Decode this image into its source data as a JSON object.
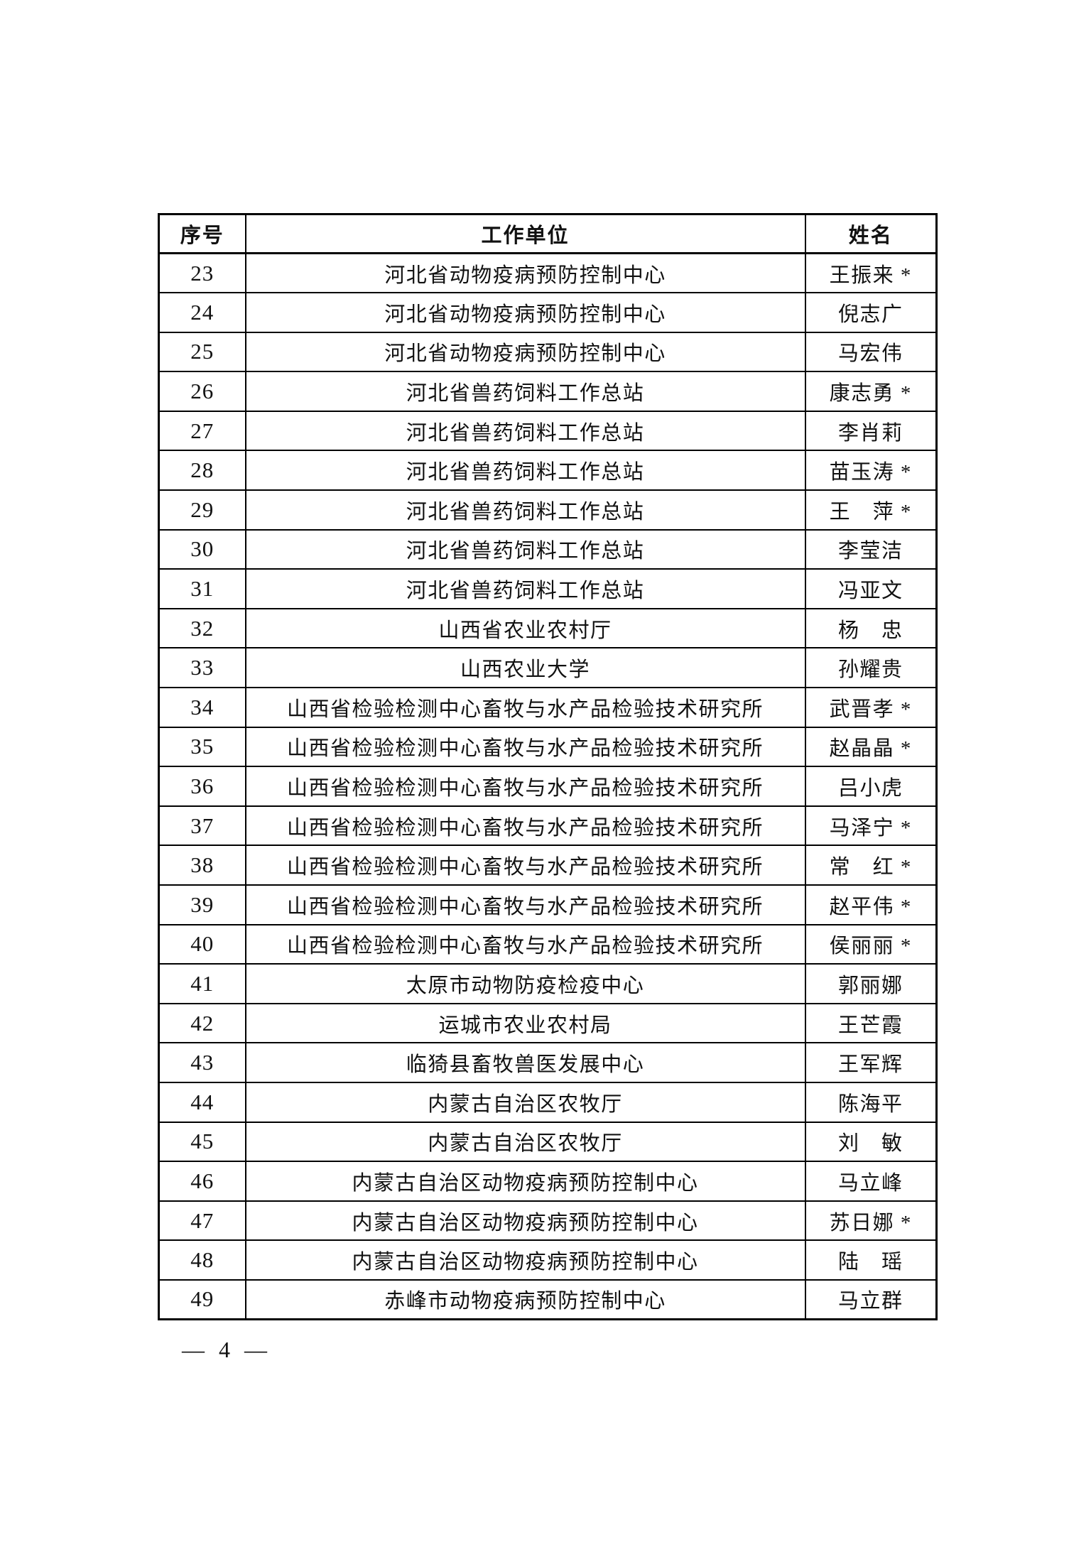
{
  "page": {
    "footer_page_number": "— 4 —"
  },
  "table": {
    "headers": {
      "serial": "序号",
      "unit": "工作单位",
      "name": "姓名"
    },
    "rows": [
      {
        "no": "23",
        "unit": "河北省动物疫病预防控制中心",
        "name": "王振来 *"
      },
      {
        "no": "24",
        "unit": "河北省动物疫病预防控制中心",
        "name": "倪志广"
      },
      {
        "no": "25",
        "unit": "河北省动物疫病预防控制中心",
        "name": "马宏伟"
      },
      {
        "no": "26",
        "unit": "河北省兽药饲料工作总站",
        "name": "康志勇 *"
      },
      {
        "no": "27",
        "unit": "河北省兽药饲料工作总站",
        "name": "李肖莉"
      },
      {
        "no": "28",
        "unit": "河北省兽药饲料工作总站",
        "name": "苗玉涛 *"
      },
      {
        "no": "29",
        "unit": "河北省兽药饲料工作总站",
        "name": "王　萍 *"
      },
      {
        "no": "30",
        "unit": "河北省兽药饲料工作总站",
        "name": "李莹洁"
      },
      {
        "no": "31",
        "unit": "河北省兽药饲料工作总站",
        "name": "冯亚文"
      },
      {
        "no": "32",
        "unit": "山西省农业农村厅",
        "name": "杨　忠"
      },
      {
        "no": "33",
        "unit": "山西农业大学",
        "name": "孙耀贵"
      },
      {
        "no": "34",
        "unit": "山西省检验检测中心畜牧与水产品检验技术研究所",
        "name": "武晋孝 *"
      },
      {
        "no": "35",
        "unit": "山西省检验检测中心畜牧与水产品检验技术研究所",
        "name": "赵晶晶 *"
      },
      {
        "no": "36",
        "unit": "山西省检验检测中心畜牧与水产品检验技术研究所",
        "name": "吕小虎"
      },
      {
        "no": "37",
        "unit": "山西省检验检测中心畜牧与水产品检验技术研究所",
        "name": "马泽宁 *"
      },
      {
        "no": "38",
        "unit": "山西省检验检测中心畜牧与水产品检验技术研究所",
        "name": "常　红 *"
      },
      {
        "no": "39",
        "unit": "山西省检验检测中心畜牧与水产品检验技术研究所",
        "name": "赵平伟 *"
      },
      {
        "no": "40",
        "unit": "山西省检验检测中心畜牧与水产品检验技术研究所",
        "name": "侯丽丽 *"
      },
      {
        "no": "41",
        "unit": "太原市动物防疫检疫中心",
        "name": "郭丽娜"
      },
      {
        "no": "42",
        "unit": "运城市农业农村局",
        "name": "王芒霞"
      },
      {
        "no": "43",
        "unit": "临猗县畜牧兽医发展中心",
        "name": "王军辉"
      },
      {
        "no": "44",
        "unit": "内蒙古自治区农牧厅",
        "name": "陈海平"
      },
      {
        "no": "45",
        "unit": "内蒙古自治区农牧厅",
        "name": "刘　敏"
      },
      {
        "no": "46",
        "unit": "内蒙古自治区动物疫病预防控制中心",
        "name": "马立峰"
      },
      {
        "no": "47",
        "unit": "内蒙古自治区动物疫病预防控制中心",
        "name": "苏日娜 *"
      },
      {
        "no": "48",
        "unit": "内蒙古自治区动物疫病预防控制中心",
        "name": "陆　瑶"
      },
      {
        "no": "49",
        "unit": "赤峰市动物疫病预防控制中心",
        "name": "马立群"
      }
    ]
  }
}
